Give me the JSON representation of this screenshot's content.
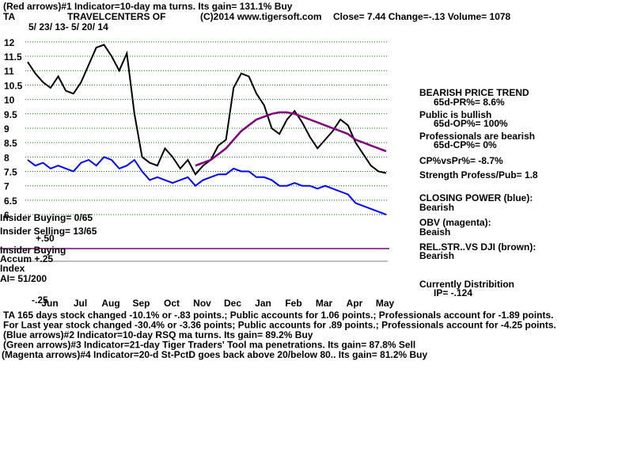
{
  "chart_data": {
    "type": "line",
    "header": {
      "line1": "(Red arrows)#1 Indicator=10-day ma turns. Its gain= 131.1% Buy",
      "symbol": "TA",
      "name": "TRAVELCENTERS OF",
      "copyright": "(C)2014 www.tigersoft.com",
      "quote": "Close=  7.44  Change=-.13 Volume= 1078",
      "dates": "5/ 23/ 13- 5/ 20/ 14"
    },
    "left_labels": [
      "Insider Buying= 0/65",
      "Insider Selling= 13/65",
      "+.50",
      "Insider Buying",
      "Accum  +.25",
      "Index",
      "AI= 51/200",
      "-.25"
    ],
    "right_panel": [
      "BEARISH PRICE TREND",
      "65d-PR%= 8.6%",
      "Public is bullish",
      "65d-OP%= 100%",
      "Professionals are bearish",
      "65d-CP%= 0%",
      "CP%vsPr%= -8.7%",
      "Strength Profess/Pub= 1.8",
      "CLOSING POWER (blue):",
      "Bearish",
      "OBV (magenta):",
      "Beaish",
      "REL.STR..VS DJI (brown):",
      "Bearish",
      "Currently Distribition",
      "IP= -.124"
    ],
    "footer": [
      "TA 165 days stock changed -10.1% or -.83 points.;  Public accounts for  1.06 points.;  Professionals account for -1.89 points.",
      "For Last year stock changed -30.4% or -3.36 points;  Public accounts for  .89 points.;  Professionals account for -4.25 points.",
      "(Blue arrows)#2 Indicator=10-day RSQ ma turns. Its gain= 89.2% Buy",
      "(Green arrows)#3 Indicator=21-day Tiger Traders' Tool ma penetrations. Its gain= 87.8% Sell",
      "(Magenta arrows)#4 Indicator=20-d St-PctD goes back above 20/below 80.. Its gain= 81.2% Buy"
    ],
    "month_labels": [
      "Jun",
      "Jul",
      "Aug",
      "Sep",
      "Oct",
      "Nov",
      "Dec",
      "Jan",
      "Feb",
      "Mar",
      "Apr",
      "May"
    ],
    "ylim": [
      5.7,
      12.6
    ],
    "yticks": [
      6,
      6.5,
      7,
      7.5,
      8,
      8.5,
      9,
      9.5,
      10,
      10.5,
      11,
      11.5,
      12
    ],
    "grid": true,
    "series": [
      {
        "color": "#000000",
        "values": [
          11.3,
          10.9,
          10.6,
          10.4,
          10.8,
          10.3,
          10.2,
          10.6,
          11.2,
          11.8,
          11.9,
          11.5,
          11.0,
          11.6,
          9.5,
          8.0,
          7.8,
          7.7,
          8.3,
          8.0,
          7.6,
          7.9,
          7.4,
          7.7,
          7.9,
          8.4,
          8.6,
          10.4,
          10.9,
          10.8,
          10.2,
          9.8,
          9.0,
          8.8,
          9.3,
          9.6,
          9.2,
          8.7,
          8.3,
          8.6,
          8.9,
          9.3,
          9.1,
          8.5,
          8.1,
          7.7,
          7.5,
          7.44
        ]
      },
      {
        "color": "#800080",
        "values": [
          null,
          null,
          null,
          null,
          null,
          null,
          null,
          null,
          null,
          null,
          null,
          null,
          null,
          null,
          null,
          null,
          null,
          null,
          null,
          null,
          null,
          null,
          7.7,
          7.8,
          7.9,
          8.1,
          8.3,
          8.6,
          8.9,
          9.1,
          9.3,
          9.4,
          9.5,
          9.55,
          9.55,
          9.5,
          9.4,
          9.3,
          9.2,
          9.1,
          9.0,
          8.9,
          8.8,
          8.6,
          8.5,
          8.4,
          8.3,
          8.2
        ]
      },
      {
        "color": "#0000ff",
        "values": [
          7.9,
          7.7,
          7.8,
          7.6,
          7.7,
          7.6,
          7.5,
          7.8,
          7.9,
          7.7,
          8.0,
          7.9,
          7.6,
          7.7,
          7.9,
          7.5,
          7.2,
          7.3,
          7.2,
          7.1,
          7.2,
          7.3,
          7.0,
          7.2,
          7.3,
          7.4,
          7.4,
          7.6,
          7.5,
          7.5,
          7.3,
          7.3,
          7.2,
          7.0,
          7.0,
          7.1,
          7.0,
          7.0,
          6.9,
          7.0,
          6.9,
          6.8,
          6.7,
          6.4,
          6.3,
          6.2,
          6.1,
          6.0
        ]
      }
    ]
  }
}
